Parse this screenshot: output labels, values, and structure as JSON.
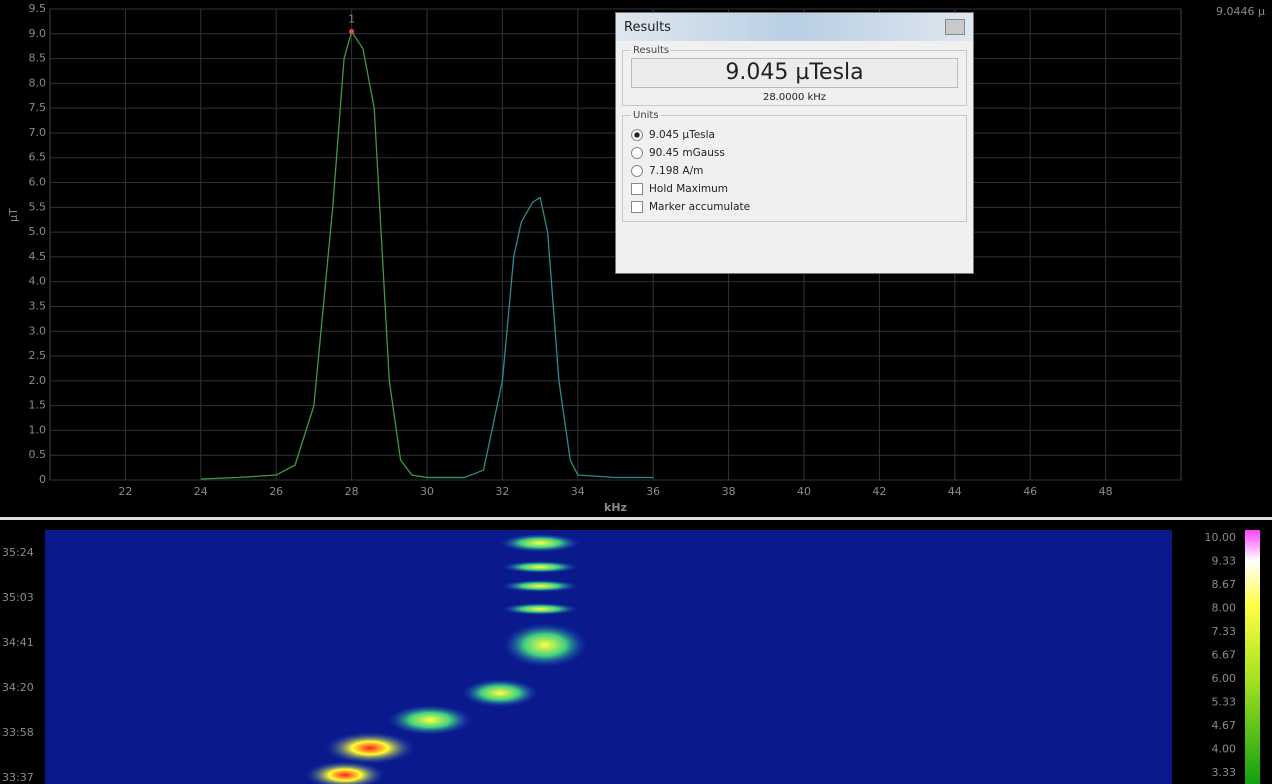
{
  "spectrum": {
    "type": "line",
    "x_label": "kHz",
    "y_label": "µT",
    "corner_readout": "9.0446 µ",
    "xlim": [
      20,
      50
    ],
    "ylim": [
      0,
      9.5
    ],
    "xticks": [
      22,
      24,
      26,
      28,
      30,
      32,
      34,
      36,
      38,
      40,
      42,
      44,
      46,
      48
    ],
    "yticks": [
      0,
      0.5,
      {
        "value": 1,
        "label": "1.0"
      },
      1.5,
      {
        "value": 2,
        "label": "2.0"
      },
      2.5,
      {
        "value": 3,
        "label": "3.0"
      },
      3.5,
      {
        "value": 4,
        "label": "4.0"
      },
      4.5,
      {
        "value": 5,
        "label": "5.0"
      },
      5.5,
      {
        "value": 6,
        "label": "6.0"
      },
      6.5,
      {
        "value": 7,
        "label": "7.0"
      },
      7.5,
      {
        "value": 8,
        "label": "8.0"
      },
      8.5,
      {
        "value": 9,
        "label": "9.0"
      },
      9.5
    ],
    "grid": true,
    "series": [
      {
        "color": "#3f9a3f",
        "x": [
          24,
          25,
          26,
          26.5,
          27,
          27.5,
          27.8,
          28,
          28.3,
          28.6,
          29,
          29.3,
          29.6,
          30,
          31
        ],
        "values": [
          0.02,
          0.05,
          0.1,
          0.3,
          1.5,
          5.5,
          8.5,
          9.045,
          8.7,
          7.5,
          2,
          0.4,
          0.1,
          0.05,
          0.05
        ]
      },
      {
        "color": "#2f8a8a",
        "x": [
          30,
          31,
          31.5,
          32,
          32.3,
          32.5,
          32.8,
          33,
          33.2,
          33.5,
          33.8,
          34,
          35,
          36
        ],
        "values": [
          0.05,
          0.05,
          0.2,
          2,
          4.5,
          5.2,
          5.6,
          5.7,
          5,
          2,
          0.4,
          0.1,
          0.05,
          0.05
        ]
      }
    ],
    "marker": {
      "label": "1",
      "x": 28,
      "y": 9.045,
      "color": "#ff4040"
    }
  },
  "waterfall": {
    "time_labels": [
      "35:24",
      "35:03",
      "34:41",
      "34:20",
      "33:58",
      "33:37"
    ],
    "colorbar_labels": [
      "10.00",
      "9.33",
      "8.67",
      "8.00",
      "7.33",
      "6.67",
      "6.00",
      "5.33",
      "4.67",
      "4.00",
      "3.33"
    ]
  },
  "dialog": {
    "title": "Results",
    "results_group": "Results",
    "reading": "9.045 µTesla",
    "frequency": "28.0000 kHz",
    "units_group": "Units",
    "unit_options": [
      "9.045 µTesla",
      "90.45 mGauss",
      "7.198 A/m"
    ],
    "checkboxes": [
      "Hold Maximum",
      "Marker accumulate"
    ]
  }
}
